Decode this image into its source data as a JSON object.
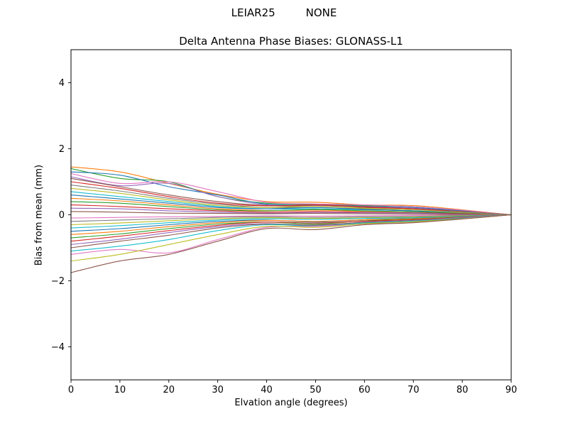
{
  "figure": {
    "suptitle": "LEIAR25         NONE",
    "background": "#ffffff",
    "axis_color": "#000000",
    "text_color": "#000000"
  },
  "chart_data": {
    "type": "line",
    "title": "Delta Antenna Phase Biases: GLONASS-L1",
    "xlabel": "Elvation angle (degrees)",
    "ylabel": "Bias from mean (mm)",
    "xlim": [
      0,
      90
    ],
    "ylim": [
      -5,
      5
    ],
    "grid": false,
    "legend": "none",
    "xticks": {
      "values": [
        0,
        10,
        20,
        30,
        40,
        50,
        60,
        70,
        80,
        90
      ],
      "labels": [
        "0",
        "10",
        "20",
        "30",
        "40",
        "50",
        "60",
        "70",
        "80",
        "90"
      ]
    },
    "yticks": {
      "values": [
        -4,
        -2,
        0,
        2,
        4
      ],
      "labels": [
        "−4",
        "−2",
        "0",
        "2",
        "4"
      ]
    },
    "x": [
      0,
      10,
      20,
      30,
      40,
      50,
      60,
      70,
      80,
      90
    ],
    "series": [
      {
        "color": "#ff7f0e",
        "values": [
          1.45,
          1.3,
          0.95,
          0.62,
          0.4,
          0.38,
          0.3,
          0.28,
          0.15,
          0.0
        ]
      },
      {
        "color": "#2ca02c",
        "values": [
          1.4,
          1.1,
          1.0,
          0.55,
          0.35,
          0.32,
          0.28,
          0.25,
          0.13,
          0.0
        ]
      },
      {
        "color": "#1f77b4",
        "values": [
          1.3,
          1.2,
          0.85,
          0.6,
          0.32,
          0.3,
          0.26,
          0.22,
          0.12,
          0.0
        ]
      },
      {
        "color": "#e377c2",
        "values": [
          1.25,
          0.95,
          1.0,
          0.7,
          0.38,
          0.33,
          0.3,
          0.25,
          0.14,
          0.0
        ]
      },
      {
        "color": "#9467bd",
        "values": [
          1.15,
          0.88,
          0.95,
          0.55,
          0.3,
          0.28,
          0.25,
          0.2,
          0.1,
          0.0
        ]
      },
      {
        "color": "#8c564b",
        "values": [
          1.1,
          0.85,
          0.6,
          0.4,
          0.28,
          0.26,
          0.22,
          0.18,
          0.1,
          0.0
        ]
      },
      {
        "color": "#d62728",
        "values": [
          1.0,
          0.8,
          0.55,
          0.35,
          0.27,
          0.3,
          0.24,
          0.18,
          0.09,
          0.0
        ]
      },
      {
        "color": "#7f7f7f",
        "values": [
          0.9,
          0.72,
          0.5,
          0.32,
          0.22,
          0.22,
          0.18,
          0.15,
          0.08,
          0.0
        ]
      },
      {
        "color": "#bcbd22",
        "values": [
          0.8,
          0.65,
          0.45,
          0.28,
          0.22,
          0.26,
          0.2,
          0.15,
          0.07,
          0.0
        ]
      },
      {
        "color": "#17becf",
        "values": [
          0.7,
          0.55,
          0.4,
          0.25,
          0.18,
          0.18,
          0.15,
          0.12,
          0.06,
          0.0
        ]
      },
      {
        "color": "#1f77b4",
        "values": [
          0.6,
          0.48,
          0.35,
          0.22,
          0.18,
          0.22,
          0.16,
          0.12,
          0.05,
          0.0
        ]
      },
      {
        "color": "#ff7f0e",
        "values": [
          0.5,
          0.42,
          0.3,
          0.18,
          0.13,
          0.14,
          0.11,
          0.09,
          0.05,
          0.0
        ]
      },
      {
        "color": "#2ca02c",
        "values": [
          0.4,
          0.35,
          0.25,
          0.15,
          0.12,
          0.16,
          0.12,
          0.09,
          0.04,
          0.0
        ]
      },
      {
        "color": "#d62728",
        "values": [
          0.3,
          0.25,
          0.18,
          0.12,
          0.08,
          0.1,
          0.08,
          0.06,
          0.03,
          0.0
        ]
      },
      {
        "color": "#9467bd",
        "values": [
          0.2,
          0.18,
          0.12,
          0.08,
          0.05,
          0.07,
          0.06,
          0.05,
          0.02,
          0.0
        ]
      },
      {
        "color": "#8c564b",
        "values": [
          0.1,
          0.08,
          0.05,
          0.04,
          0.03,
          0.04,
          0.03,
          0.02,
          0.01,
          0.0
        ]
      },
      {
        "color": "#e377c2",
        "values": [
          -0.1,
          -0.08,
          -0.06,
          -0.05,
          -0.03,
          -0.04,
          -0.03,
          -0.02,
          -0.01,
          0.0
        ]
      },
      {
        "color": "#7f7f7f",
        "values": [
          -0.2,
          -0.16,
          -0.12,
          -0.08,
          -0.06,
          -0.08,
          -0.06,
          -0.05,
          -0.02,
          0.0
        ]
      },
      {
        "color": "#bcbd22",
        "values": [
          -0.3,
          -0.25,
          -0.18,
          -0.12,
          -0.09,
          -0.11,
          -0.09,
          -0.07,
          -0.03,
          0.0
        ]
      },
      {
        "color": "#17becf",
        "values": [
          -0.4,
          -0.33,
          -0.24,
          -0.16,
          -0.12,
          -0.14,
          -0.11,
          -0.09,
          -0.04,
          0.0
        ]
      },
      {
        "color": "#1f77b4",
        "values": [
          -0.5,
          -0.42,
          -0.3,
          -0.2,
          -0.16,
          -0.22,
          -0.15,
          -0.11,
          -0.05,
          0.0
        ]
      },
      {
        "color": "#ff7f0e",
        "values": [
          -0.6,
          -0.5,
          -0.36,
          -0.24,
          -0.17,
          -0.2,
          -0.15,
          -0.12,
          -0.06,
          0.0
        ]
      },
      {
        "color": "#2ca02c",
        "values": [
          -0.7,
          -0.58,
          -0.42,
          -0.28,
          -0.22,
          -0.28,
          -0.18,
          -0.14,
          -0.07,
          0.0
        ]
      },
      {
        "color": "#d62728",
        "values": [
          -0.8,
          -0.65,
          -0.48,
          -0.32,
          -0.22,
          -0.25,
          -0.19,
          -0.15,
          -0.08,
          0.0
        ]
      },
      {
        "color": "#9467bd",
        "values": [
          -0.9,
          -0.74,
          -0.54,
          -0.36,
          -0.27,
          -0.33,
          -0.22,
          -0.17,
          -0.08,
          0.0
        ]
      },
      {
        "color": "#8c564b",
        "values": [
          -1.0,
          -0.8,
          -0.62,
          -0.4,
          -0.28,
          -0.31,
          -0.23,
          -0.18,
          -0.1,
          0.0
        ]
      },
      {
        "color": "#17becf",
        "values": [
          -1.1,
          -0.95,
          -0.75,
          -0.48,
          -0.3,
          -0.34,
          -0.25,
          -0.19,
          -0.11,
          0.0
        ]
      },
      {
        "color": "#e377c2",
        "values": [
          -1.2,
          -1.05,
          -1.15,
          -0.75,
          -0.38,
          -0.35,
          -0.28,
          -0.22,
          -0.12,
          0.0
        ]
      },
      {
        "color": "#bcbd22",
        "values": [
          -1.4,
          -1.2,
          -0.9,
          -0.6,
          -0.35,
          -0.38,
          -0.27,
          -0.21,
          -0.12,
          0.0
        ]
      },
      {
        "color": "#8c564b",
        "values": [
          -1.75,
          -1.4,
          -1.2,
          -0.8,
          -0.42,
          -0.45,
          -0.3,
          -0.24,
          -0.13,
          0.0
        ]
      }
    ]
  }
}
